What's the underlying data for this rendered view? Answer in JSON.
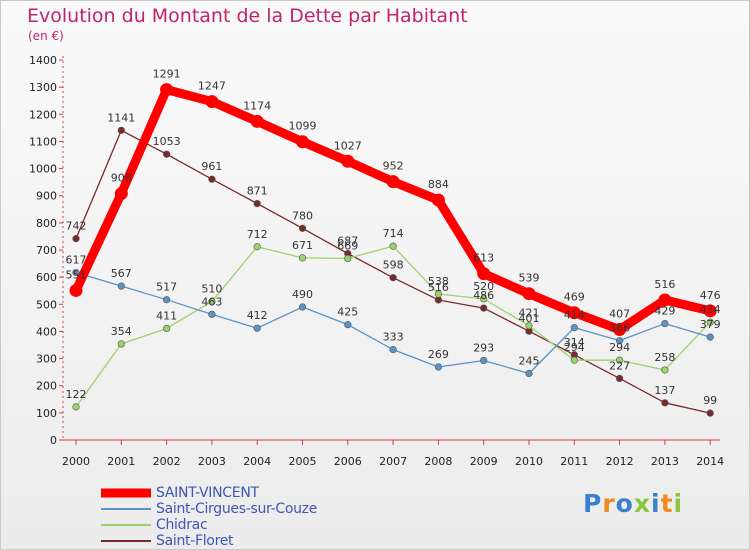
{
  "header": {
    "title": "Evolution du Montant de la Dette par Habitant",
    "subtitle": "(en €)"
  },
  "logo": {
    "text": "Proxiti",
    "letter_colors": [
      "#3a7fd0",
      "#f08a1c",
      "#3a7fd0",
      "#8cc63f",
      "#3a7fd0",
      "#f08a1c",
      "#8cc63f"
    ]
  },
  "chart_data": {
    "type": "line",
    "x": [
      "2000",
      "2001",
      "2002",
      "2003",
      "2004",
      "2005",
      "2006",
      "2007",
      "2008",
      "2009",
      "2010",
      "2011",
      "2012",
      "2013",
      "2014"
    ],
    "ylim": [
      0,
      1400
    ],
    "yticks": [
      0,
      100,
      200,
      300,
      400,
      500,
      600,
      700,
      800,
      900,
      1000,
      1100,
      1200,
      1300,
      1400
    ],
    "grid": false,
    "legend_position": "bottom-left",
    "series": [
      {
        "name": "Saint-Floret",
        "color": "#7a2a2a",
        "values": [
          742,
          1141,
          1053,
          961,
          871,
          780,
          687,
          598,
          516,
          486,
          401,
          314,
          227,
          137,
          99
        ],
        "labels": [
          "742",
          "1141",
          "1053",
          "961",
          "871",
          "780",
          "687",
          "598",
          "516",
          "486",
          "401",
          "314",
          "227",
          "137",
          "99"
        ]
      },
      {
        "name": "Chidrac",
        "color": "#9ad36a",
        "values": [
          122,
          354,
          411,
          510,
          712,
          671,
          669,
          714,
          538,
          520,
          421,
          294,
          294,
          258,
          434
        ],
        "labels": [
          "122",
          "354",
          "411",
          "510",
          "712",
          "671",
          "669",
          "714",
          "538",
          "520",
          "421",
          "294",
          "294",
          "258",
          "434"
        ]
      },
      {
        "name": "Saint-Cirgues-sur-Couze",
        "color": "#5b93c7",
        "values": [
          617,
          567,
          517,
          463,
          412,
          490,
          425,
          333,
          269,
          293,
          245,
          414,
          366,
          429,
          379
        ],
        "labels": [
          "617",
          "567",
          "517",
          "463",
          "412",
          "490",
          "425",
          "333",
          "269",
          "293",
          "245",
          "414",
          "366",
          "429",
          "379"
        ]
      },
      {
        "name": "SAINT-VINCENT",
        "color": "#ff0000",
        "values": [
          551,
          908,
          1291,
          1247,
          1174,
          1099,
          1027,
          952,
          884,
          613,
          539,
          469,
          407,
          516,
          476
        ],
        "labels": [
          "551",
          "908",
          "1291",
          "1247",
          "1174",
          "1099",
          "1027",
          "952",
          "884",
          "613",
          "539",
          "469",
          "407",
          "516",
          "476"
        ]
      }
    ],
    "legend_order": [
      "SAINT-VINCENT",
      "Saint-Cirgues-sur-Couze",
      "Chidrac",
      "Saint-Floret"
    ]
  }
}
